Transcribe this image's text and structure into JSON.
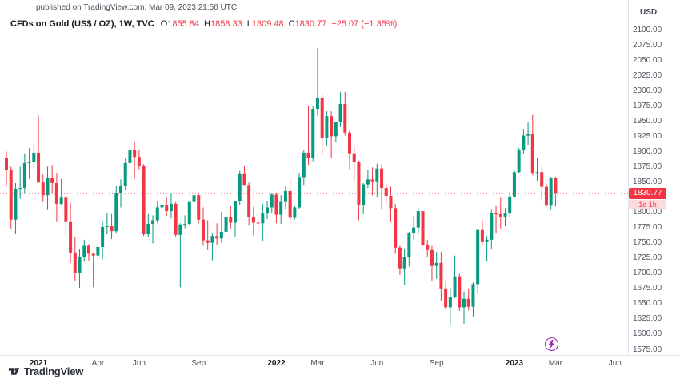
{
  "header": {
    "published_line": "published on TradingView.com, Mar 09, 2023 21:56 UTC",
    "symbol_title": "CFDs on Gold (US$ / OZ), 1W, TVC",
    "ohlc_items": [
      {
        "label": "O",
        "value": "1855.84"
      },
      {
        "label": "H",
        "value": "1858.33"
      },
      {
        "label": "L",
        "value": "1809.48"
      },
      {
        "label": "C",
        "value": "1830.77"
      }
    ],
    "change": "−25.07 (−1.35%)"
  },
  "price_axis": {
    "currency": "USD",
    "ticks": [
      "2100.00",
      "2075.00",
      "2050.00",
      "2025.00",
      "2000.00",
      "1975.00",
      "1950.00",
      "1925.00",
      "1900.00",
      "1875.00",
      "1850.00",
      "1825.00",
      "1800.00",
      "1775.00",
      "1750.00",
      "1725.00",
      "1700.00",
      "1675.00",
      "1650.00",
      "1625.00",
      "1600.00",
      "1575.00"
    ],
    "last_price_label": "1830.77",
    "countdown": "1d 1h"
  },
  "time_axis": {
    "ticks": [
      {
        "label": "2021",
        "week": 7,
        "major": true
      },
      {
        "label": "Apr",
        "week": 20,
        "major": false
      },
      {
        "label": "Jun",
        "week": 29,
        "major": false
      },
      {
        "label": "Sep",
        "week": 42,
        "major": false
      },
      {
        "label": "2022",
        "week": 59,
        "major": true
      },
      {
        "label": "Mar",
        "week": 68,
        "major": false
      },
      {
        "label": "Jun",
        "week": 81,
        "major": false
      },
      {
        "label": "Sep",
        "week": 94,
        "major": false
      },
      {
        "label": "2023",
        "week": 111,
        "major": true
      },
      {
        "label": "Mar",
        "week": 120,
        "major": false
      },
      {
        "label": "Jun",
        "week": 133,
        "major": false
      }
    ]
  },
  "footer": {
    "brand": "TradingView"
  },
  "colors": {
    "up": "#089981",
    "down": "#F23645",
    "price_line": "#F23645",
    "axis_line": "#e0e3eb",
    "marker": "#9C27B0",
    "text": "#131722"
  },
  "chart_data": {
    "type": "candlestick",
    "title": "CFDs on Gold (US$ / OZ)",
    "interval": "1W",
    "exchange": "TVC",
    "currency": "USD",
    "ylim": [
      1575,
      2100
    ],
    "y_step": 25,
    "x_range": "Nov 2020 – Mar 2023 (weekly bars)",
    "last_close": 1830.77,
    "last_bar": {
      "open": 1855.84,
      "high": 1858.33,
      "low": 1809.48,
      "close": 1830.77,
      "change": -25.07,
      "change_pct": -1.35
    },
    "candles_format": [
      "open",
      "high",
      "low",
      "close"
    ],
    "candles": [
      [
        1889,
        1900,
        1844,
        1870
      ],
      [
        1870,
        1875,
        1773,
        1788
      ],
      [
        1788,
        1848,
        1764,
        1839
      ],
      [
        1839,
        1875,
        1822,
        1840
      ],
      [
        1840,
        1897,
        1830,
        1881
      ],
      [
        1881,
        1906,
        1855,
        1883
      ],
      [
        1883,
        1913,
        1873,
        1898
      ],
      [
        1898,
        1959,
        1887,
        1849
      ],
      [
        1849,
        1863,
        1817,
        1828
      ],
      [
        1828,
        1875,
        1804,
        1856
      ],
      [
        1856,
        1878,
        1831,
        1848
      ],
      [
        1848,
        1865,
        1784,
        1814
      ],
      [
        1814,
        1855,
        1812,
        1824
      ],
      [
        1824,
        1827,
        1760,
        1784
      ],
      [
        1784,
        1816,
        1717,
        1734
      ],
      [
        1734,
        1760,
        1687,
        1700
      ],
      [
        1700,
        1740,
        1676,
        1727
      ],
      [
        1727,
        1755,
        1719,
        1745
      ],
      [
        1745,
        1748,
        1720,
        1732
      ],
      [
        1732,
        1733,
        1677,
        1729
      ],
      [
        1729,
        1758,
        1721,
        1743
      ],
      [
        1743,
        1784,
        1723,
        1776
      ],
      [
        1776,
        1798,
        1764,
        1777
      ],
      [
        1777,
        1797,
        1756,
        1769
      ],
      [
        1769,
        1843,
        1765,
        1831
      ],
      [
        1831,
        1854,
        1808,
        1843
      ],
      [
        1843,
        1890,
        1836,
        1881
      ],
      [
        1881,
        1912,
        1873,
        1903
      ],
      [
        1903,
        1916,
        1855,
        1891
      ],
      [
        1891,
        1903,
        1869,
        1877
      ],
      [
        1877,
        1879,
        1761,
        1764
      ],
      [
        1764,
        1797,
        1760,
        1781
      ],
      [
        1781,
        1795,
        1749,
        1787
      ],
      [
        1787,
        1819,
        1782,
        1808
      ],
      [
        1808,
        1834,
        1791,
        1812
      ],
      [
        1812,
        1825,
        1794,
        1802
      ],
      [
        1802,
        1832,
        1790,
        1814
      ],
      [
        1814,
        1817,
        1759,
        1763
      ],
      [
        1763,
        1782,
        1677,
        1780
      ],
      [
        1780,
        1795,
        1774,
        1781
      ],
      [
        1781,
        1809,
        1780,
        1817
      ],
      [
        1817,
        1834,
        1806,
        1828
      ],
      [
        1828,
        1830,
        1782,
        1788
      ],
      [
        1788,
        1808,
        1745,
        1754
      ],
      [
        1754,
        1787,
        1738,
        1750
      ],
      [
        1750,
        1765,
        1721,
        1761
      ],
      [
        1761,
        1782,
        1746,
        1757
      ],
      [
        1757,
        1801,
        1750,
        1768
      ],
      [
        1768,
        1814,
        1760,
        1792
      ],
      [
        1792,
        1810,
        1772,
        1783
      ],
      [
        1783,
        1818,
        1759,
        1818
      ],
      [
        1818,
        1868,
        1812,
        1864
      ],
      [
        1864,
        1877,
        1845,
        1845
      ],
      [
        1845,
        1849,
        1778,
        1792
      ],
      [
        1792,
        1809,
        1762,
        1783
      ],
      [
        1783,
        1793,
        1770,
        1782
      ],
      [
        1782,
        1814,
        1752,
        1798
      ],
      [
        1798,
        1819,
        1789,
        1808
      ],
      [
        1808,
        1831,
        1798,
        1829
      ],
      [
        1829,
        1832,
        1782,
        1796
      ],
      [
        1796,
        1828,
        1781,
        1817
      ],
      [
        1817,
        1843,
        1805,
        1835
      ],
      [
        1835,
        1854,
        1780,
        1791
      ],
      [
        1791,
        1810,
        1788,
        1808
      ],
      [
        1808,
        1865,
        1806,
        1858
      ],
      [
        1858,
        1902,
        1845,
        1898
      ],
      [
        1898,
        1974,
        1878,
        1889
      ],
      [
        1889,
        1974,
        1884,
        1970
      ],
      [
        1970,
        2070,
        1958,
        1988
      ],
      [
        1988,
        1994,
        1895,
        1922
      ],
      [
        1922,
        1966,
        1910,
        1958
      ],
      [
        1958,
        1966,
        1890,
        1925
      ],
      [
        1925,
        1949,
        1915,
        1948
      ],
      [
        1948,
        1998,
        1940,
        1978
      ],
      [
        1978,
        1998,
        1926,
        1931
      ],
      [
        1931,
        1935,
        1871,
        1897
      ],
      [
        1897,
        1910,
        1850,
        1883
      ],
      [
        1883,
        1885,
        1787,
        1812
      ],
      [
        1812,
        1848,
        1797,
        1846
      ],
      [
        1846,
        1870,
        1840,
        1854
      ],
      [
        1854,
        1874,
        1828,
        1851
      ],
      [
        1851,
        1880,
        1824,
        1872
      ],
      [
        1872,
        1879,
        1805,
        1840
      ],
      [
        1840,
        1848,
        1816,
        1827
      ],
      [
        1827,
        1842,
        1784,
        1807
      ],
      [
        1807,
        1814,
        1732,
        1742
      ],
      [
        1742,
        1745,
        1697,
        1708
      ],
      [
        1708,
        1739,
        1681,
        1727
      ],
      [
        1727,
        1768,
        1711,
        1766
      ],
      [
        1766,
        1794,
        1754,
        1775
      ],
      [
        1775,
        1808,
        1764,
        1802
      ],
      [
        1802,
        1802,
        1745,
        1747
      ],
      [
        1747,
        1755,
        1727,
        1738
      ],
      [
        1738,
        1745,
        1688,
        1712
      ],
      [
        1712,
        1735,
        1691,
        1717
      ],
      [
        1717,
        1735,
        1654,
        1675
      ],
      [
        1675,
        1688,
        1640,
        1644
      ],
      [
        1644,
        1675,
        1615,
        1661
      ],
      [
        1661,
        1729,
        1659,
        1695
      ],
      [
        1695,
        1699,
        1638,
        1644
      ],
      [
        1644,
        1670,
        1617,
        1658
      ],
      [
        1658,
        1675,
        1639,
        1645
      ],
      [
        1645,
        1685,
        1629,
        1682
      ],
      [
        1682,
        1772,
        1666,
        1771
      ],
      [
        1771,
        1787,
        1746,
        1751
      ],
      [
        1751,
        1761,
        1719,
        1755
      ],
      [
        1755,
        1804,
        1739,
        1798
      ],
      [
        1798,
        1810,
        1765,
        1797
      ],
      [
        1797,
        1824,
        1773,
        1793
      ],
      [
        1793,
        1807,
        1777,
        1798
      ],
      [
        1798,
        1833,
        1793,
        1826
      ],
      [
        1826,
        1870,
        1823,
        1866
      ],
      [
        1866,
        1906,
        1865,
        1902
      ],
      [
        1902,
        1937,
        1896,
        1926
      ],
      [
        1926,
        1949,
        1911,
        1928
      ],
      [
        1928,
        1960,
        1861,
        1865
      ],
      [
        1865,
        1890,
        1852,
        1866
      ],
      [
        1866,
        1875,
        1819,
        1842
      ],
      [
        1842,
        1847,
        1809,
        1811
      ],
      [
        1811,
        1858,
        1804,
        1856
      ],
      [
        1855.84,
        1858.33,
        1809.48,
        1830.77
      ]
    ]
  }
}
